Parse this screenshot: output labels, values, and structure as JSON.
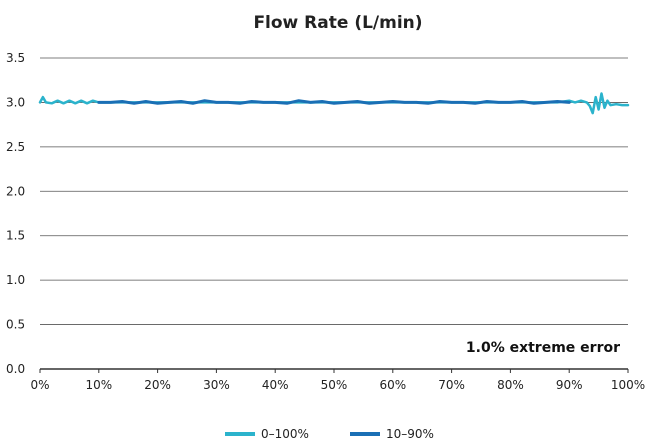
{
  "chart_data": {
    "type": "line",
    "title": "Flow Rate (L/min)",
    "xlabel": "",
    "ylabel": "",
    "xlim": [
      0,
      100
    ],
    "ylim": [
      0,
      3.5
    ],
    "x_ticks": [
      {
        "value": 0,
        "label": "0%"
      },
      {
        "value": 10,
        "label": "10%"
      },
      {
        "value": 20,
        "label": "20%"
      },
      {
        "value": 30,
        "label": "30%"
      },
      {
        "value": 40,
        "label": "40%"
      },
      {
        "value": 50,
        "label": "50%"
      },
      {
        "value": 60,
        "label": "60%"
      },
      {
        "value": 70,
        "label": "70%"
      },
      {
        "value": 80,
        "label": "80%"
      },
      {
        "value": 90,
        "label": "90%"
      },
      {
        "value": 100,
        "label": "100%"
      }
    ],
    "y_ticks": [
      {
        "value": 0,
        "label": "0.0"
      },
      {
        "value": 0.5,
        "label": "0.5"
      },
      {
        "value": 1.0,
        "label": "1.0"
      },
      {
        "value": 1.5,
        "label": "1.5"
      },
      {
        "value": 2.0,
        "label": "2.0"
      },
      {
        "value": 2.5,
        "label": "2.5"
      },
      {
        "value": 3.0,
        "label": "3.0"
      },
      {
        "value": 3.5,
        "label": "3.5"
      }
    ],
    "grid": "horizontal",
    "legend": "bottom-center",
    "annotation": "1.0% extreme error",
    "series": [
      {
        "name": "0–100%",
        "color": "#2bb3cc",
        "x": [
          0,
          0.5,
          1,
          2,
          3,
          4,
          5,
          6,
          7,
          8,
          9,
          10,
          20,
          30,
          40,
          50,
          60,
          70,
          80,
          88,
          90,
          91,
          92,
          93,
          93.5,
          94,
          94.5,
          95,
          95.5,
          96,
          96.5,
          97,
          98,
          99,
          100
        ],
        "values": [
          3.0,
          3.06,
          3.0,
          2.99,
          3.02,
          2.99,
          3.02,
          2.99,
          3.02,
          2.99,
          3.02,
          3.0,
          3.0,
          3.0,
          3.0,
          3.0,
          3.0,
          3.0,
          3.0,
          3.0,
          3.02,
          3.0,
          3.02,
          3.0,
          2.96,
          2.88,
          3.06,
          2.92,
          3.1,
          2.94,
          3.02,
          2.97,
          2.98,
          2.97,
          2.97
        ]
      },
      {
        "name": "10–90%",
        "color": "#1a6fb5",
        "x": [
          10,
          12,
          14,
          16,
          18,
          20,
          22,
          24,
          26,
          28,
          30,
          32,
          34,
          36,
          38,
          40,
          42,
          44,
          46,
          48,
          50,
          52,
          54,
          56,
          58,
          60,
          62,
          64,
          66,
          68,
          70,
          72,
          74,
          76,
          78,
          80,
          82,
          84,
          86,
          88,
          90
        ],
        "values": [
          3.0,
          3.0,
          3.01,
          2.99,
          3.01,
          2.99,
          3.0,
          3.01,
          2.99,
          3.02,
          3.0,
          3.0,
          2.99,
          3.01,
          3.0,
          3.0,
          2.99,
          3.02,
          3.0,
          3.01,
          2.99,
          3.0,
          3.01,
          2.99,
          3.0,
          3.01,
          3.0,
          3.0,
          2.99,
          3.01,
          3.0,
          3.0,
          2.99,
          3.01,
          3.0,
          3.0,
          3.01,
          2.99,
          3.0,
          3.01,
          3.0
        ]
      }
    ]
  }
}
